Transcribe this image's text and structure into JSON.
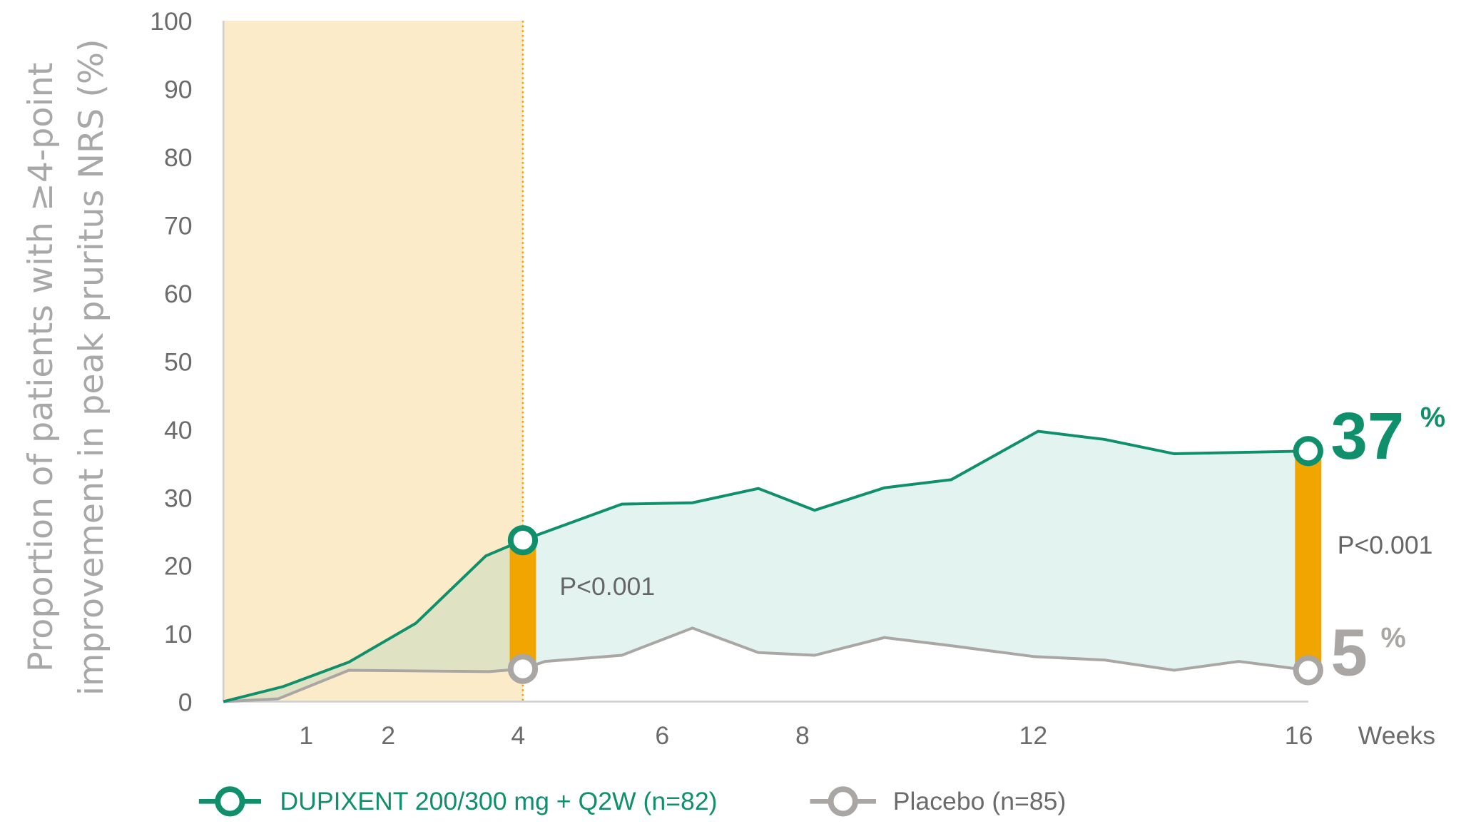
{
  "chart_data": {
    "type": "line",
    "title": "",
    "ylabel_lines": [
      "Proportion of patients with ≥4-point",
      "improvement in peak pruritus NRS (%)"
    ],
    "xlabel": "Weeks",
    "ylim": [
      0,
      100
    ],
    "yticks": [
      0,
      10,
      20,
      30,
      40,
      50,
      60,
      70,
      80,
      90,
      100
    ],
    "xticks": [
      1,
      2,
      4,
      6,
      8,
      12,
      16
    ],
    "grid": false,
    "legend_position": "bottom",
    "shaded_region": {
      "from_week": 0,
      "to_week": 4,
      "color": "#fcebc8"
    },
    "series": [
      {
        "name": "DUPIXENT 200/300 mg + Q2W (n=82)",
        "color": "#0f8f6b",
        "x": [
          0,
          0.72,
          1.52,
          2.41,
          3.45,
          4,
          5.42,
          6.43,
          7.37,
          8.21,
          9.42,
          10.58,
          12.07,
          13.04,
          14.05,
          16
        ],
        "y": [
          0,
          2.2,
          5.8,
          11.5,
          21.4,
          23.7,
          29.0,
          29.2,
          31.3,
          28.1,
          31.4,
          32.6,
          39.7,
          38.5,
          36.4,
          36.8
        ]
      },
      {
        "name": "Placebo (n=85)",
        "color": "#a9a6a3",
        "x": [
          0,
          0.66,
          1.52,
          3.5,
          4,
          4.32,
          5.42,
          6.43,
          7.37,
          8.21,
          9.42,
          10.58,
          12.02,
          13.04,
          14.05,
          14.99,
          16
        ],
        "y": [
          0,
          0.4,
          4.6,
          4.4,
          4.8,
          5.9,
          6.8,
          10.8,
          7.2,
          6.8,
          9.4,
          8.2,
          6.6,
          6.1,
          4.6,
          5.9,
          4.6
        ]
      }
    ],
    "highlight_points": [
      {
        "series": 0,
        "week": 4,
        "value": 23.7
      },
      {
        "series": 1,
        "week": 4,
        "value": 4.8
      },
      {
        "series": 0,
        "week": 16,
        "value": 36.8
      },
      {
        "series": 1,
        "week": 16,
        "value": 4.6
      }
    ],
    "difference_bars": {
      "weeks": [
        4,
        16
      ],
      "color": "#f0a500"
    },
    "annotations": {
      "p_week4": "P<0.001",
      "p_week16": "P<0.001",
      "dupixent_final": "37",
      "placebo_final": "5",
      "percent": "%"
    },
    "fill_between_color": "#e3f4f0"
  }
}
